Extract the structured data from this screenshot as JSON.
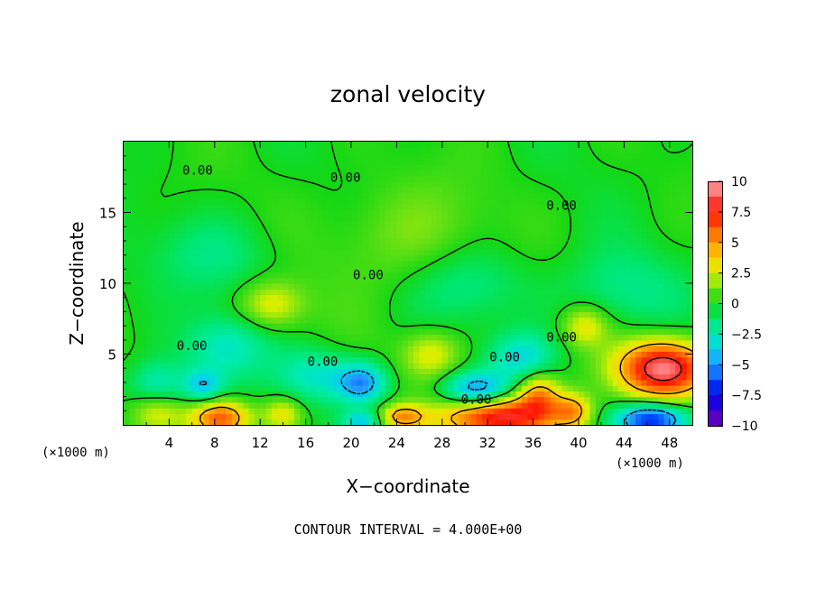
{
  "chart_data": {
    "type": "heatmap",
    "title": "zonal velocity",
    "xlabel": "X−coordinate",
    "ylabel": "Z−coordinate",
    "x_unit": "(×1000 m)",
    "z_unit": "(×1000 m)",
    "xlim": [
      0,
      50
    ],
    "ylim": [
      0,
      20
    ],
    "x_ticks": [
      4,
      8,
      12,
      16,
      20,
      24,
      28,
      32,
      36,
      40,
      44,
      48
    ],
    "x_tick_labels": [
      "4",
      "8",
      "12",
      "16",
      "20",
      "24",
      "28",
      "32",
      "36",
      "40",
      "44",
      "48"
    ],
    "y_ticks": [
      5,
      10,
      15
    ],
    "y_tick_labels": [
      "5",
      "10",
      "15"
    ],
    "colorbar": {
      "min": -10,
      "max": 10,
      "ticks": [
        10,
        7.5,
        5,
        2.5,
        0,
        -2.5,
        -5,
        -7.5,
        -10
      ],
      "tick_labels": [
        "10",
        "7.5",
        "5",
        "2.5",
        "0",
        "−2.5",
        "−5",
        "−7.5",
        "−10"
      ]
    },
    "contour_interval_label": "CONTOUR INTERVAL = 4.000E+00",
    "contour_label": "0.00",
    "contour_label_positions": [
      [
        6.5,
        18.0
      ],
      [
        19.5,
        17.5
      ],
      [
        38.5,
        15.5
      ],
      [
        21.5,
        10.6
      ],
      [
        6.0,
        5.6
      ],
      [
        17.5,
        4.5
      ],
      [
        33.5,
        4.8
      ],
      [
        38.5,
        6.2
      ],
      [
        31.0,
        1.8
      ]
    ],
    "features": [
      {
        "x": 47.5,
        "z": 4.0,
        "value": 9.5,
        "sx": 2.8,
        "sz": 1.4
      },
      {
        "x": 33.0,
        "z": 0.6,
        "value": 8.5,
        "sx": 3.5,
        "sz": 1.0
      },
      {
        "x": 8.5,
        "z": 0.5,
        "value": 6.5,
        "sx": 1.8,
        "sz": 0.9
      },
      {
        "x": 46.5,
        "z": 0.4,
        "value": -7.5,
        "sx": 2.2,
        "sz": 0.8
      },
      {
        "x": 31.0,
        "z": 2.5,
        "value": -5.0,
        "sx": 2.0,
        "sz": 0.9
      },
      {
        "x": 21.0,
        "z": 3.0,
        "value": -4.8,
        "sx": 1.5,
        "sz": 1.0
      },
      {
        "x": 7.0,
        "z": 2.8,
        "value": -3.5,
        "sx": 1.2,
        "sz": 0.8
      },
      {
        "x": 9.0,
        "z": 5.5,
        "value": -2.8,
        "sx": 2.5,
        "sz": 1.6
      },
      {
        "x": 17.0,
        "z": 3.5,
        "value": -2.8,
        "sx": 2.5,
        "sz": 1.3
      },
      {
        "x": 35.0,
        "z": 4.8,
        "value": -3.2,
        "sx": 2.0,
        "sz": 1.2
      },
      {
        "x": 3.0,
        "z": 2.8,
        "value": -2.8,
        "sx": 1.8,
        "sz": 1.2
      },
      {
        "x": 13.0,
        "z": 8.5,
        "value": 3.0,
        "sx": 2.0,
        "sz": 1.2
      },
      {
        "x": 36.5,
        "z": 2.2,
        "value": 4.5,
        "sx": 1.3,
        "sz": 1.1
      },
      {
        "x": 39.5,
        "z": 1.0,
        "value": 4.0,
        "sx": 1.2,
        "sz": 0.9
      },
      {
        "x": 24.5,
        "z": 0.6,
        "value": 4.5,
        "sx": 1.4,
        "sz": 0.6
      },
      {
        "x": 27.0,
        "z": 5.0,
        "value": 3.0,
        "sx": 1.8,
        "sz": 1.2
      },
      {
        "x": 40.5,
        "z": 7.0,
        "value": 3.0,
        "sx": 1.4,
        "sz": 1.0
      },
      {
        "x": 14.0,
        "z": 0.8,
        "value": 3.0,
        "sx": 1.2,
        "sz": 0.8
      },
      {
        "x": 3.0,
        "z": 1.0,
        "value": 2.5,
        "sx": 1.6,
        "sz": 1.0
      },
      {
        "x": 25.0,
        "z": 13.0,
        "value": 1.5,
        "sx": 5.0,
        "sz": 3.0
      },
      {
        "x": 30.0,
        "z": 10.0,
        "value": -1.8,
        "sx": 4.0,
        "sz": 2.0
      },
      {
        "x": 44.0,
        "z": 9.5,
        "value": -1.6,
        "sx": 4.0,
        "sz": 2.0
      },
      {
        "x": 8.0,
        "z": 12.0,
        "value": -1.4,
        "sx": 4.0,
        "sz": 2.0
      },
      {
        "x": 21.0,
        "z": 0.3,
        "value": -3.5,
        "sx": 1.2,
        "sz": 0.5
      }
    ]
  }
}
